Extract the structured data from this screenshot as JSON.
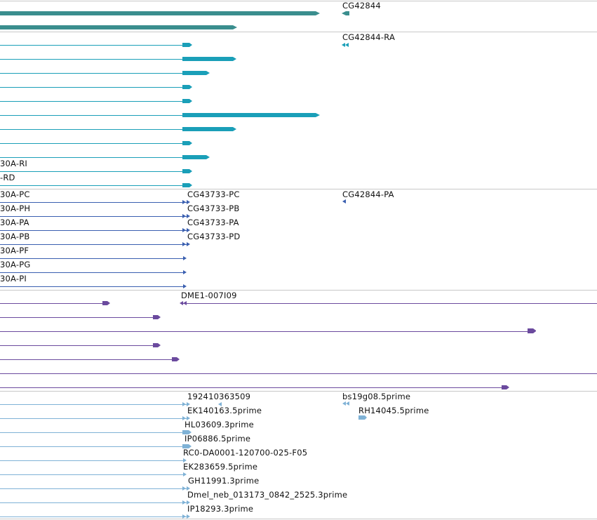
{
  "colors": {
    "gene": "#3a8e8e",
    "mrna": "#1a9fb8",
    "protein": "#3a5fb0",
    "clone": "#6b4a9e",
    "est": "#7fb2d6",
    "separator": "#c8c8c8"
  },
  "tracks": {
    "gene": {
      "labels": [
        "CG42844"
      ]
    },
    "mrna": {
      "labels": [
        "CG42844-RA",
        "30A-RI",
        "-RD"
      ]
    },
    "protein": {
      "labels": [
        "30A-PC",
        "30A-PH",
        "30A-PA",
        "30A-PB",
        "30A-PF",
        "30A-PG",
        "30A-PI",
        "CG43733-PC",
        "CG43733-PB",
        "CG43733-PA",
        "CG43733-PD",
        "CG42844-PA"
      ]
    },
    "clone": {
      "labels": [
        "DME1-007I09"
      ]
    },
    "est": {
      "labels": [
        "192410363509",
        "EK140163.5prime",
        "HL03609.3prime",
        "IP06886.5prime",
        "RC0-DA0001-120700-025-F05",
        "EK283659.5prime",
        "GH11991.3prime",
        "Dmel_neb_013173_0842_2525.3prime",
        "IP18293.3prime",
        "bs19g08.5prime",
        "RH14045.5prime"
      ]
    }
  }
}
